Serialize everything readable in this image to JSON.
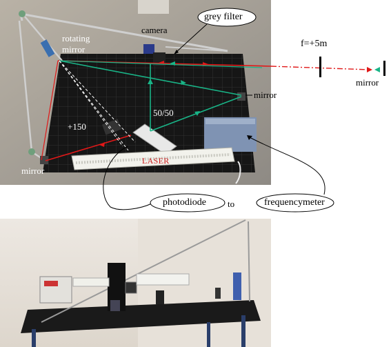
{
  "labels": {
    "grey_filter": "grey filter",
    "camera": "camera",
    "rotating_mirror_line1": "rotating",
    "rotating_mirror_line2": "mirror",
    "focal_length": "f=+5m",
    "mirror_right_near": "mirror",
    "mirror_far": "mirror",
    "splitter": "50/50",
    "lens": "+150",
    "laser": "LASER",
    "mirror_bottom_left": "mirror",
    "photodiode": "photodiode",
    "to": "to",
    "frequencymeter": "frequencymeter"
  },
  "colors": {
    "laser_beam": "#e01818",
    "return_beam": "#19b487",
    "table": "#1a1a1a"
  }
}
